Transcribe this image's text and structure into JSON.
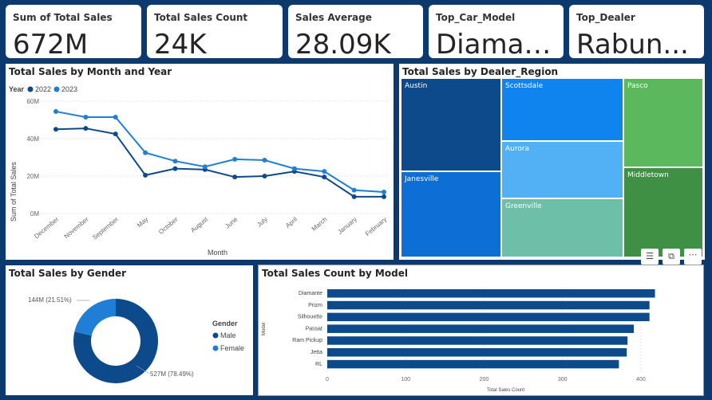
{
  "kpis": [
    {
      "title": "Sum of Total Sales",
      "value": "672M"
    },
    {
      "title": "Total Sales Count",
      "value": "24K"
    },
    {
      "title": "Sales Average",
      "value": "28.09K"
    },
    {
      "title": "Top_Car_Model",
      "value": "Diamante"
    },
    {
      "title": "Top_Dealer",
      "value": "Rabun..."
    }
  ],
  "line_panel": {
    "title": "Total Sales by Month and Year",
    "legend_title": "Year",
    "y_axis_title": "Sum of Total Sales",
    "x_axis_title": "Month",
    "y_ticks": [
      "0M",
      "20M",
      "40M",
      "60M"
    ]
  },
  "treemap_panel": {
    "title": "Total Sales by Dealer_Region",
    "tiles": [
      "Austin",
      "Janesville",
      "Scottsdale",
      "Aurora",
      "Greenville",
      "Pasco",
      "Middletown"
    ]
  },
  "gender_panel": {
    "title": "Total Sales by Gender",
    "legend_title": "Gender",
    "slices": [
      {
        "label": "Male",
        "value": 527,
        "display": "527M (78.49%)",
        "color": "#0d4a8c"
      },
      {
        "label": "Female",
        "value": 144,
        "display": "144M (21.51%)",
        "color": "#1f7fd6"
      }
    ]
  },
  "model_panel": {
    "title": "Total Sales Count by Model",
    "y_axis_title": "Model",
    "x_axis_title": "Total Sales Count",
    "x_ticks": [
      "0",
      "100",
      "200",
      "300",
      "400"
    ]
  },
  "icons": {
    "filter": "filter-icon",
    "focus": "focus-mode-icon",
    "more": "more-options-icon"
  },
  "colors": {
    "background": "#0c3a6e",
    "series_2022": "#0d4a8c",
    "series_2023": "#1f7fd6",
    "bar": "#0d4a8c"
  },
  "chart_data": [
    {
      "type": "line",
      "title": "Total Sales by Month and Year",
      "xlabel": "Month",
      "ylabel": "Sum of Total Sales",
      "categories": [
        "December",
        "November",
        "September",
        "May",
        "October",
        "August",
        "June",
        "July",
        "April",
        "March",
        "January",
        "February"
      ],
      "series": [
        {
          "name": "2022",
          "values": [
            45,
            45.5,
            42.5,
            20.5,
            24,
            23.5,
            19.5,
            20,
            22.5,
            19.5,
            9,
            9
          ]
        },
        {
          "name": "2023",
          "values": [
            54.5,
            51.5,
            51.5,
            32.5,
            28,
            25,
            29,
            28.5,
            24,
            22.5,
            12.5,
            11.5
          ]
        }
      ],
      "ylim": [
        0,
        60
      ],
      "y_unit": "M",
      "legend": "top-left"
    },
    {
      "type": "treemap",
      "title": "Total Sales by Dealer_Region",
      "categories": [
        "Austin",
        "Janesville",
        "Scottsdale",
        "Aurora",
        "Greenville",
        "Pasco",
        "Middletown"
      ]
    },
    {
      "type": "pie",
      "title": "Total Sales by Gender",
      "categories": [
        "Male",
        "Female"
      ],
      "values": [
        527,
        144
      ],
      "labels": [
        "527M (78.49%)",
        "144M (21.51%)"
      ],
      "legend": "right"
    },
    {
      "type": "bar",
      "orientation": "horizontal",
      "title": "Total Sales Count by Model",
      "xlabel": "Total Sales Count",
      "ylabel": "Model",
      "categories": [
        "Diamante",
        "Prizm",
        "Silhouette",
        "Passat",
        "Ram Pickup",
        "Jetta",
        "RL"
      ],
      "values": [
        418,
        411,
        411,
        391,
        383,
        382,
        372
      ],
      "xlim": [
        0,
        450
      ]
    }
  ]
}
